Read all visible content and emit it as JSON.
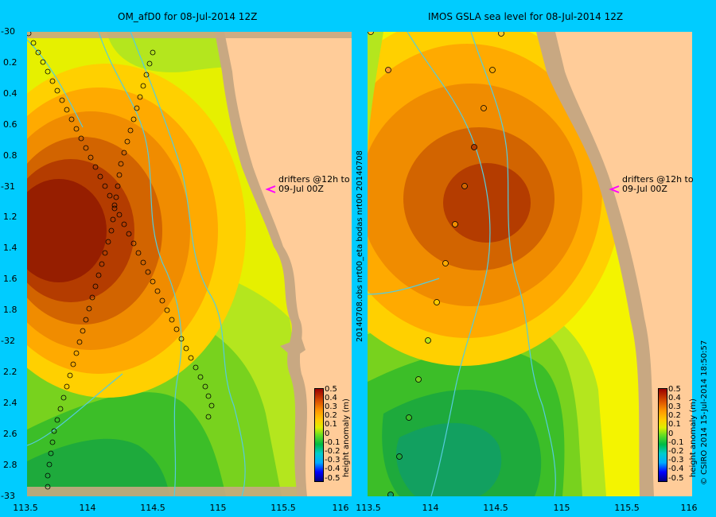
{
  "left_map": {
    "title": "OM_afD0 for 08-Jul-2014 12Z",
    "annotation": "drifters @12h to\n09-Jul 00Z",
    "colorbar_title": "height anomaly (m)"
  },
  "right_map": {
    "title": "IMOS GSLA sea level  for 08-Jul-2014 12Z",
    "annotation": "drifters @12h to\n09-Jul 00Z",
    "colorbar_title": "height anomaly (m)",
    "side_text_left": "20140708.obs  nrt00_eta         bodas  nrt00  20140708",
    "side_text_right": "© CSIRO 2014  15-Jul-2014 18:50:57"
  },
  "axes": {
    "y_ticks": [
      "-30",
      "-30.2",
      "-30.4",
      "-30.6",
      "-30.8",
      "-31",
      "-31.2",
      "-31.4",
      "-31.6",
      "-31.8",
      "-32",
      "-32.2",
      "-32.4",
      "-32.6",
      "-32.8",
      "-33"
    ],
    "y_labels_shown": [
      "-30",
      "0.2",
      "0.4",
      "0.6",
      "0.8",
      "-31",
      "1.2",
      "1.4",
      "1.6",
      "1.8",
      "-32",
      "2.2",
      "2.4",
      "2.6",
      "2.8",
      "-33"
    ],
    "x_labels_left": [
      "113.5",
      "114",
      "114.5",
      "115",
      "115.5",
      "116"
    ],
    "x_labels_right": [
      "113.5",
      "114",
      "114.5",
      "115",
      "115.5",
      "116"
    ]
  },
  "colorbar": {
    "ticks": [
      "0.5",
      "0.4",
      "0.3",
      "0.2",
      "0.1",
      "0",
      "-0.1",
      "-0.2",
      "-0.3",
      "-0.4",
      "-0.5"
    ]
  },
  "colors": {
    "background": "#00ccff",
    "land": "#ffcc99",
    "coast_shelf": "#c8a882",
    "drifter_track": "#8a6a4a",
    "annotation_arrow": "#ff00ff"
  }
}
